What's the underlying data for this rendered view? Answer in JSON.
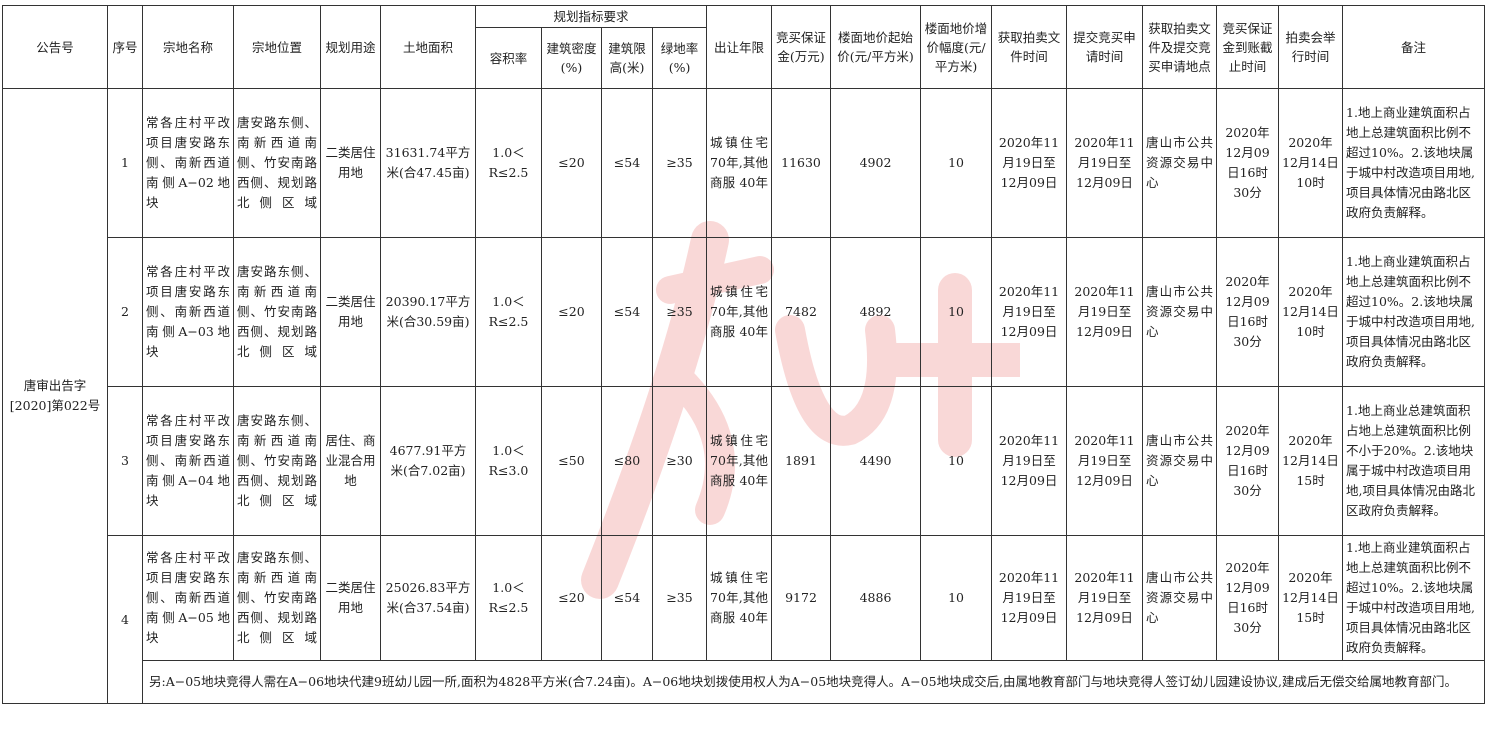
{
  "header": {
    "notice_no": "公告号",
    "seq": "序号",
    "name": "宗地名称",
    "location": "宗地位置",
    "usage": "规划用途",
    "area": "土地面积",
    "planning_group": "规划指标要求",
    "far": "容积率",
    "density": "建筑密度(%)",
    "height": "建筑限高(米)",
    "green": "绿地率(%)",
    "term": "出让年限",
    "deposit": "竞买保证金(万元)",
    "start_price": "楼面地价起始价(元/平方米)",
    "increment": "楼面地价增价幅度(元/平方米)",
    "doc_time": "获取拍卖文件时间",
    "apply_time": "提交竞买申请时间",
    "place": "获取拍卖文件及提交竞买申请地点",
    "deposit_deadline": "竞买保证金到账截止时间",
    "auction_time": "拍卖会举行时间",
    "remarks": "备注"
  },
  "notice_no": "唐审出告字[2020]第022号",
  "rows": [
    {
      "seq": "1",
      "name": "常各庄村平改项目唐安路东侧、南新西道南侧A−02地块",
      "location": "唐安路东侧、南新西道南侧、竹安南路西侧、规划路北侧区域",
      "usage": "二类居住用地",
      "area": "31631.74平方米(合47.45亩)",
      "far": "1.0＜R≤2.5",
      "density": "≤20",
      "height": "≤54",
      "green": "≥35",
      "term": "城镇住宅 70年,其他商服 40年",
      "deposit": "11630",
      "start_price": "4902",
      "increment": "10",
      "doc_time": "2020年11月19日至12月09日",
      "apply_time": "2020年11月19日至12月09日",
      "place": "唐山市公共资源交易中心",
      "deposit_deadline": "2020年12月09日16时30分",
      "auction_time": "2020年12月14日10时",
      "remarks": "1.地上商业建筑面积占地上总建筑面积比例不超过10%。2.该地块属于城中村改造项目用地,项目具体情况由路北区政府负责解释。"
    },
    {
      "seq": "2",
      "name": "常各庄村平改项目唐安路东侧、南新西道南侧A−03地块",
      "location": "唐安路东侧、南新西道南侧、竹安南路西侧、规划路北侧区域",
      "usage": "二类居住用地",
      "area": "20390.17平方米(合30.59亩)",
      "far": "1.0＜R≤2.5",
      "density": "≤20",
      "height": "≤54",
      "green": "≥35",
      "term": "城镇住宅 70年,其他商服 40年",
      "deposit": "7482",
      "start_price": "4892",
      "increment": "10",
      "doc_time": "2020年11月19日至12月09日",
      "apply_time": "2020年11月19日至12月09日",
      "place": "唐山市公共资源交易中心",
      "deposit_deadline": "2020年12月09日16时30分",
      "auction_time": "2020年12月14日10时",
      "remarks": "1.地上商业建筑面积占地上总建筑面积比例不超过10%。2.该地块属于城中村改造项目用地,项目具体情况由路北区政府负责解释。"
    },
    {
      "seq": "3",
      "name": "常各庄村平改项目唐安路东侧、南新西道南侧A−04地块",
      "location": "唐安路东侧、南新西道南侧、竹安南路西侧、规划路北侧区域",
      "usage": "居住、商业混合用地",
      "area": "4677.91平方米(合7.02亩)",
      "far": "1.0＜R≤3.0",
      "density": "≤50",
      "height": "≤80",
      "green": "≥30",
      "term": "城镇住宅 70年,其他商服 40年",
      "deposit": "1891",
      "start_price": "4490",
      "increment": "10",
      "doc_time": "2020年11月19日至12月09日",
      "apply_time": "2020年11月19日至12月09日",
      "place": "唐山市公共资源交易中心",
      "deposit_deadline": "2020年12月09日16时30分",
      "auction_time": "2020年12月14日15时",
      "remarks": "1.地上商业总建筑面积占地上总建筑面积比例不小于20%。2.该地块属于城中村改造项目用地,项目具体情况由路北区政府负责解释。"
    },
    {
      "seq": "4",
      "name": "常各庄村平改项目唐安路东侧、南新西道南侧A−05地块",
      "location": "唐安路东侧、南新西道南侧、竹安南路西侧、规划路北侧区域",
      "usage": "二类居住用地",
      "area": "25026.83平方米(合37.54亩)",
      "far": "1.0＜R≤2.5",
      "density": "≤20",
      "height": "≤54",
      "green": "≥35",
      "term": "城镇住宅 70年,其他商服 40年",
      "deposit": "9172",
      "start_price": "4886",
      "increment": "10",
      "doc_time": "2020年11月19日至12月09日",
      "apply_time": "2020年11月19日至12月09日",
      "place": "唐山市公共资源交易中心",
      "deposit_deadline": "2020年12月09日16时30分",
      "auction_time": "2020年12月14日15时",
      "remarks": "1.地上商业建筑面积占地上总建筑面积比例不超过10%。2.该地块属于城中村改造项目用地,项目具体情况由路北区政府负责解释。"
    }
  ],
  "footnote": "另:A−05地块竞得人需在A−06地块代建9班幼儿园一所,面积为4828平方米(合7.24亩)。A−06地块划拨使用权人为A−05地块竞得人。A−05地块成交后,由属地教育部门与地块竞得人签订幼儿园建设协议,建成后无偿交给属地教育部门。",
  "watermark": {
    "text": "唐山+",
    "color": "#e0201c"
  }
}
